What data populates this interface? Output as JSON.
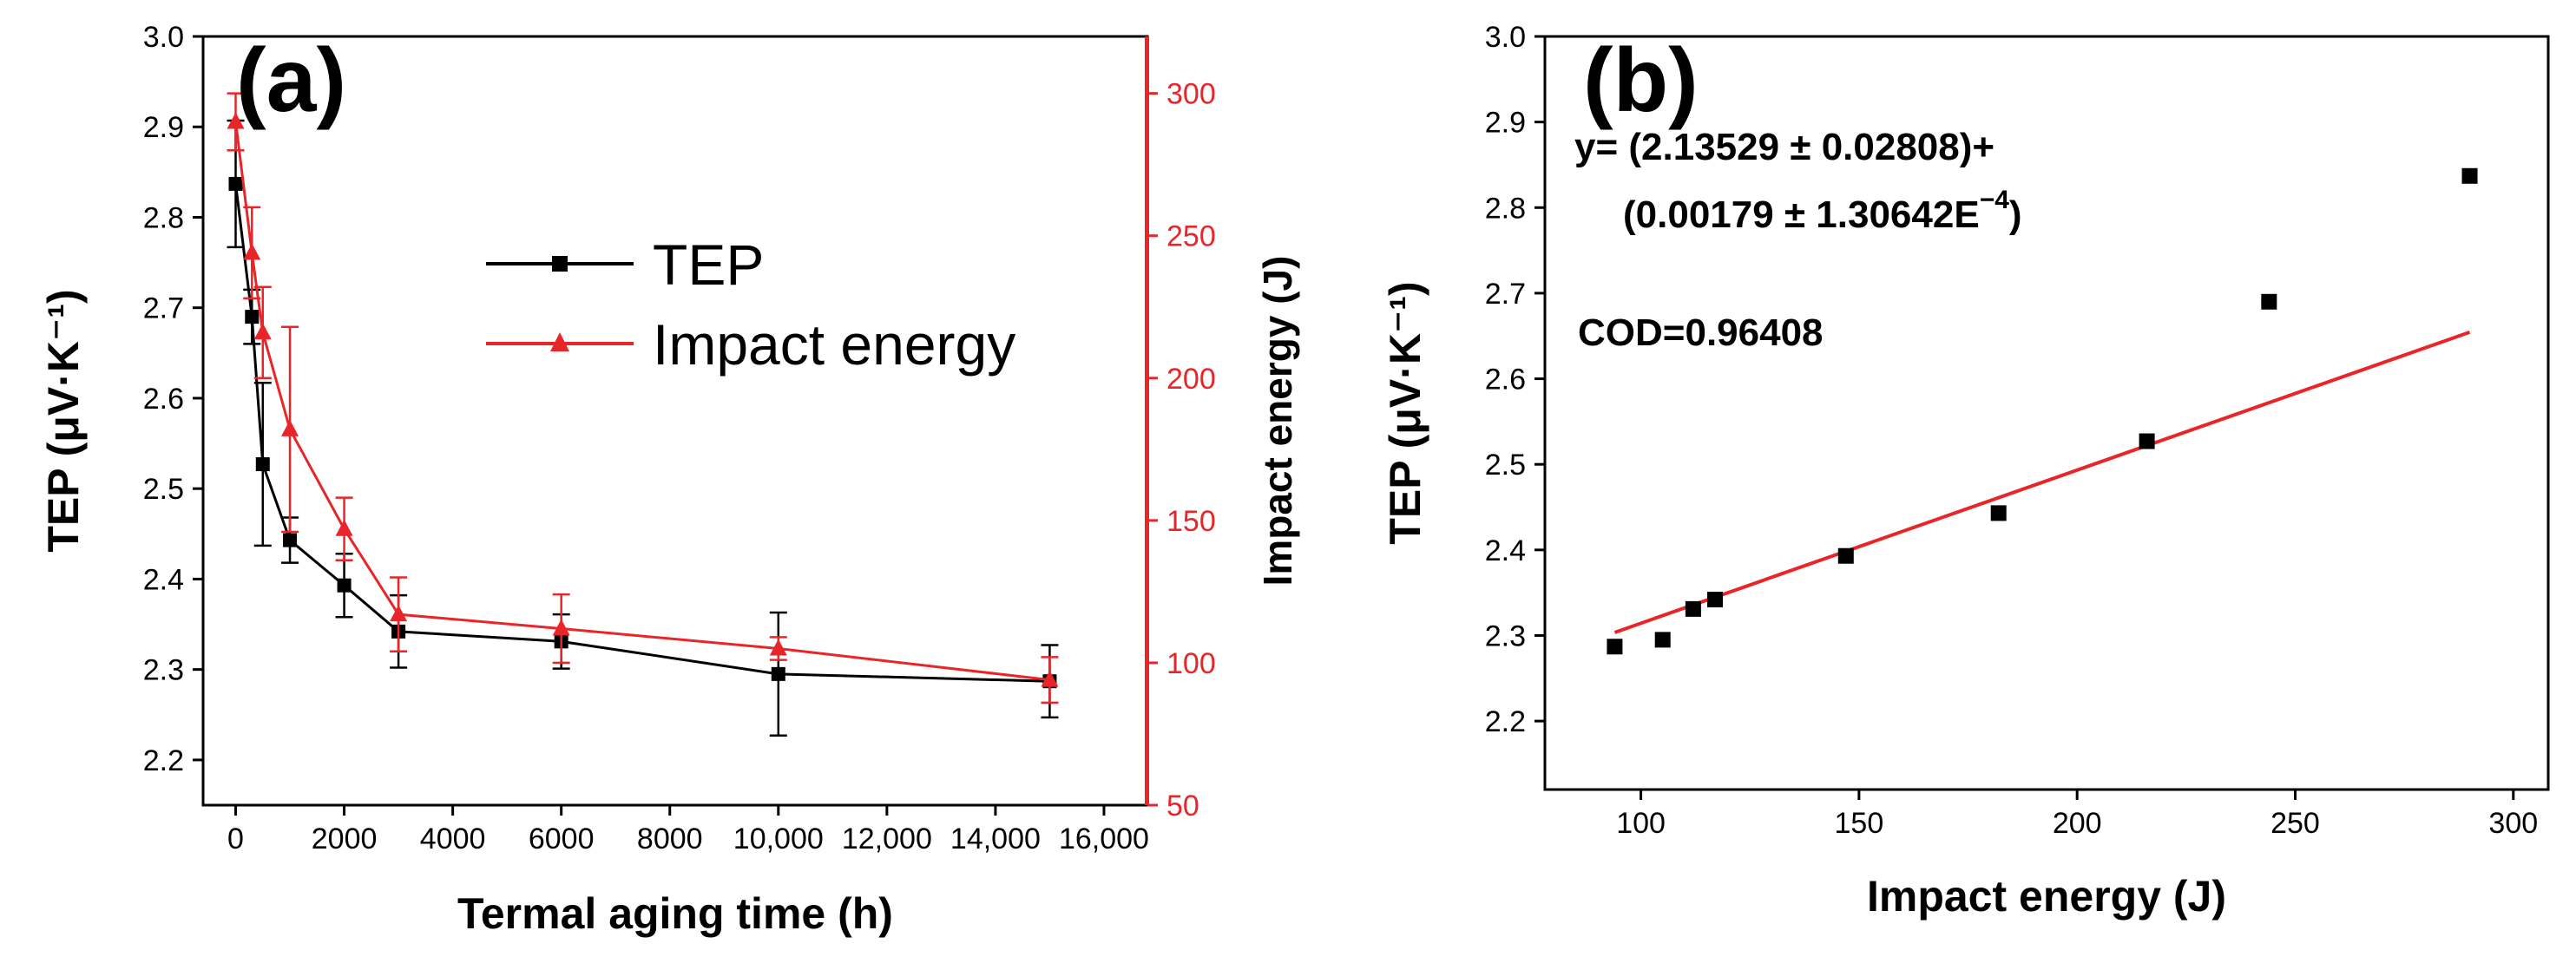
{
  "colors": {
    "tep": "#000000",
    "impact": "#e8262a",
    "fit": "#e8262a"
  },
  "chart_data": [
    {
      "panel": "(a)",
      "type": "line",
      "xlabel": "Termal aging time (h)",
      "ylabel": "TEP (μV·K⁻¹)",
      "y2label": "Impact energy (J)",
      "xlim": [
        -600,
        16800
      ],
      "ylim": [
        2.15,
        3.0
      ],
      "y2lim": [
        50,
        320
      ],
      "xticks": [
        0,
        2000,
        4000,
        6000,
        8000,
        10000,
        12000,
        14000,
        16000
      ],
      "xtick_labels": [
        "0",
        "2000",
        "4000",
        "6000",
        "8000",
        "10,000",
        "12,000",
        "14,000",
        "16,000"
      ],
      "yticks": [
        2.2,
        2.3,
        2.4,
        2.5,
        2.6,
        2.7,
        2.8,
        2.9,
        3.0
      ],
      "ytick_labels": [
        "2.2",
        "2.3",
        "2.4",
        "2.5",
        "2.6",
        "2.7",
        "2.8",
        "2.9",
        "3.0"
      ],
      "y2ticks": [
        50,
        100,
        150,
        200,
        250,
        300
      ],
      "y2tick_labels": [
        "50",
        "100",
        "150",
        "200",
        "250",
        "300"
      ],
      "legend": [
        "TEP",
        "Impact energy"
      ],
      "series": [
        {
          "name": "TEP",
          "axis": "left",
          "marker": "square",
          "x": [
            0,
            300,
            500,
            1000,
            2000,
            3000,
            6000,
            10000,
            15000
          ],
          "values": [
            2.837,
            2.69,
            2.527,
            2.443,
            2.393,
            2.342,
            2.331,
            2.295,
            2.287
          ],
          "errors": [
            0.07,
            0.03,
            0.09,
            0.025,
            0.035,
            0.04,
            0.03,
            0.068,
            0.04
          ]
        },
        {
          "name": "Impact energy",
          "axis": "right",
          "marker": "triangle",
          "x": [
            0,
            300,
            500,
            1000,
            2000,
            3000,
            6000,
            10000,
            15000
          ],
          "values": [
            290,
            244,
            216,
            182,
            147,
            117,
            112,
            105,
            94
          ],
          "errors": [
            10,
            16,
            16,
            36,
            11,
            13,
            12,
            4,
            8
          ]
        }
      ]
    },
    {
      "panel": "(b)",
      "type": "scatter",
      "xlabel": "Impact energy (J)",
      "ylabel": "TEP (μV·K⁻¹)",
      "xlim": [
        78,
        308
      ],
      "ylim": [
        2.12,
        3.0
      ],
      "xticks": [
        100,
        150,
        200,
        250,
        300
      ],
      "xtick_labels": [
        "100",
        "150",
        "200",
        "250",
        "300"
      ],
      "yticks": [
        2.2,
        2.3,
        2.4,
        2.5,
        2.6,
        2.7,
        2.8,
        2.9,
        3.0
      ],
      "ytick_labels": [
        "2.2",
        "2.3",
        "2.4",
        "2.5",
        "2.6",
        "2.7",
        "2.8",
        "2.9",
        "3.0"
      ],
      "series": [
        {
          "name": "TEP",
          "marker": "square",
          "x": [
            94,
            105,
            112,
            117,
            147,
            182,
            216,
            244,
            290
          ],
          "values": [
            2.287,
            2.295,
            2.331,
            2.342,
            2.393,
            2.443,
            2.527,
            2.69,
            2.837
          ]
        }
      ],
      "fit": {
        "intercept": 2.13529,
        "slope": 0.00179,
        "x_range": [
          94,
          290
        ]
      },
      "annotation": {
        "line1": "y= (2.13529 ± 0.02808)+",
        "line2": "(0.00179 ± 1.30642E",
        "line2_exp": "−4",
        "line2_end": ")",
        "cod": "COD=0.96408"
      }
    }
  ]
}
